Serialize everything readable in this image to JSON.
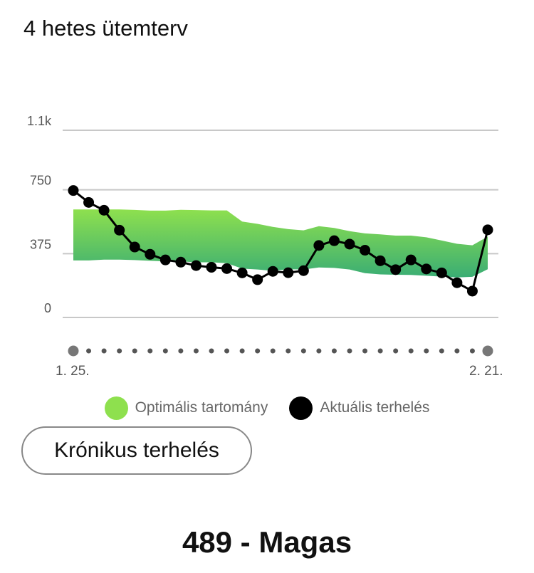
{
  "title": "4 hetes ütemterv",
  "chart_data": {
    "type": "line",
    "ylim": [
      0,
      1100
    ],
    "y_ticks": [
      {
        "value": 0,
        "label": "0"
      },
      {
        "value": 375,
        "label": "375"
      },
      {
        "value": 750,
        "label": "750"
      },
      {
        "value": 1100,
        "label": "1.1k"
      }
    ],
    "x_start_label": "1. 25.",
    "x_end_label": "2. 21.",
    "day_count": 28,
    "series": [
      {
        "name": "Aktuális terhelés",
        "color": "#000000",
        "values": [
          746,
          676,
          630,
          513,
          414,
          371,
          338,
          325,
          305,
          295,
          287,
          262,
          222,
          271,
          263,
          275,
          423,
          451,
          431,
          395,
          333,
          281,
          338,
          285,
          262,
          204,
          155,
          515
        ]
      }
    ],
    "optimal_range": {
      "name": "Optimális tartomány",
      "lower": [
        335,
        335,
        340,
        340,
        337,
        333,
        329,
        329,
        324,
        324,
        319,
        287,
        282,
        274,
        283,
        282,
        294,
        291,
        282,
        260,
        253,
        251,
        250,
        245,
        240,
        235,
        239,
        283
      ],
      "upper": [
        635,
        635,
        635,
        635,
        632,
        628,
        628,
        633,
        631,
        629,
        629,
        564,
        550,
        532,
        519,
        512,
        536,
        526,
        507,
        494,
        488,
        481,
        481,
        471,
        452,
        433,
        424,
        475
      ]
    }
  },
  "legend": {
    "optimal_label": "Optimális tartomány",
    "optimal_color": "#8ee04e",
    "actual_label": "Aktuális terhelés",
    "actual_color": "#000000"
  },
  "chronic_button_label": "Krónikus terhelés",
  "summary": "489 - Magas"
}
